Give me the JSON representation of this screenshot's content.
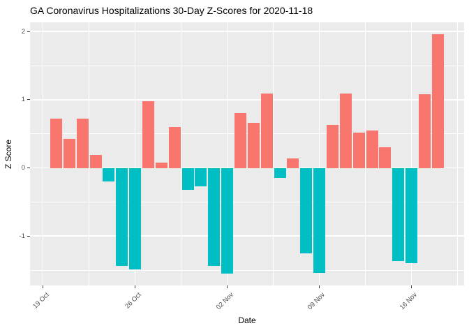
{
  "chart_data": {
    "type": "bar",
    "title": "GA Coronavirus Hospitalizations 30-Day Z-Scores for 2020-11-18",
    "xlabel": "Date",
    "ylabel": "Z Score",
    "dates": [
      "2020-10-20",
      "2020-10-21",
      "2020-10-22",
      "2020-10-23",
      "2020-10-24",
      "2020-10-25",
      "2020-10-26",
      "2020-10-27",
      "2020-10-28",
      "2020-10-29",
      "2020-10-30",
      "2020-10-31",
      "2020-11-01",
      "2020-11-02",
      "2020-11-03",
      "2020-11-04",
      "2020-11-05",
      "2020-11-06",
      "2020-11-07",
      "2020-11-08",
      "2020-11-09",
      "2020-11-10",
      "2020-11-11",
      "2020-11-12",
      "2020-11-13",
      "2020-11-14",
      "2020-11-15",
      "2020-11-16",
      "2020-11-17",
      "2020-11-18"
    ],
    "values": [
      0.72,
      0.43,
      0.72,
      0.19,
      -0.2,
      -1.44,
      -1.49,
      0.98,
      0.08,
      0.6,
      -0.32,
      -0.27,
      -1.44,
      -1.55,
      0.8,
      0.66,
      1.09,
      -0.15,
      0.14,
      -1.25,
      -1.54,
      0.63,
      1.09,
      0.52,
      0.55,
      0.3,
      -1.37,
      -1.4,
      1.08,
      1.96
    ],
    "positive_color": "#F8766D",
    "negative_color": "#00BFC4",
    "panel_background": "#EBEBEB",
    "grid_color": "#FFFFFF",
    "tick_mark_color": "#333333",
    "tick_label_color": "#4D4D4D",
    "x_origin_date": "2020-10-19",
    "x_ticks": [
      {
        "day": 0,
        "label": "19 Oct"
      },
      {
        "day": 7,
        "label": "26 Oct"
      },
      {
        "day": 14,
        "label": "02 Nov"
      },
      {
        "day": 21,
        "label": "09 Nov"
      },
      {
        "day": 28,
        "label": "16 Nov"
      }
    ],
    "x_minor_days": [
      3.5,
      10.5,
      17.5,
      24.5,
      31.5
    ],
    "x_lim_days": [
      -0.99,
      32.0
    ],
    "y_ticks": [
      {
        "value": 2,
        "label": "2"
      },
      {
        "value": 1,
        "label": "1"
      },
      {
        "value": 0,
        "label": "0"
      },
      {
        "value": -1,
        "label": "-1"
      }
    ],
    "y_minor": [
      1.5,
      0.5,
      -0.5,
      -1.5
    ],
    "y_lim": [
      -1.725,
      2.135
    ],
    "bar_width_frac": 0.9,
    "legend": "none",
    "grid": "on"
  }
}
